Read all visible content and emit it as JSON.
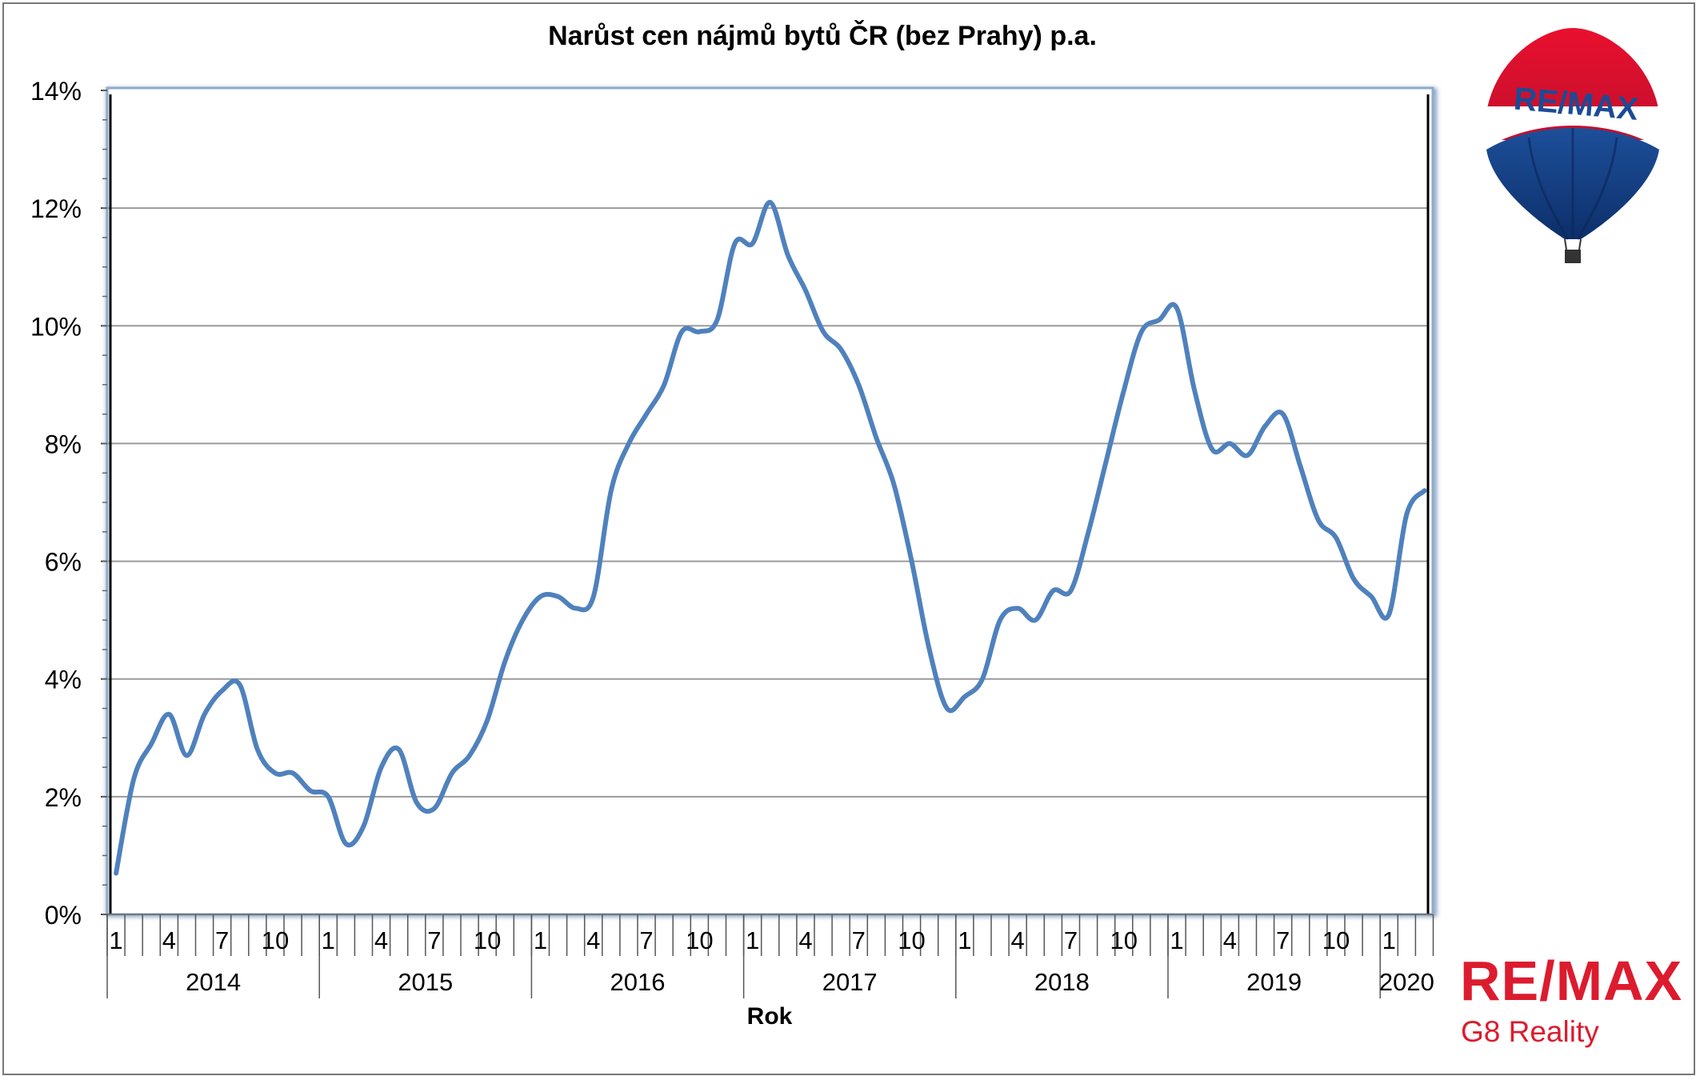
{
  "chart_data": {
    "type": "line",
    "title": "Narůst cen nájmů bytů ČR (bez Prahy) p.a.",
    "xlabel": "Rok",
    "ylabel": "",
    "ylim": [
      0,
      14
    ],
    "yticks": [
      "0%",
      "2%",
      "4%",
      "6%",
      "8%",
      "10%",
      "12%",
      "14%"
    ],
    "grid": true,
    "legend": "none",
    "years": [
      "2014",
      "2015",
      "2016",
      "2017",
      "2018",
      "2019",
      "2020"
    ],
    "month_tick_labels": [
      "1",
      "4",
      "7",
      "10"
    ],
    "x": [
      "2014-01",
      "2014-02",
      "2014-03",
      "2014-04",
      "2014-05",
      "2014-06",
      "2014-07",
      "2014-08",
      "2014-09",
      "2014-10",
      "2014-11",
      "2014-12",
      "2015-01",
      "2015-02",
      "2015-03",
      "2015-04",
      "2015-05",
      "2015-06",
      "2015-07",
      "2015-08",
      "2015-09",
      "2015-10",
      "2015-11",
      "2015-12",
      "2016-01",
      "2016-02",
      "2016-03",
      "2016-04",
      "2016-05",
      "2016-06",
      "2016-07",
      "2016-08",
      "2016-09",
      "2016-10",
      "2016-11",
      "2016-12",
      "2017-01",
      "2017-02",
      "2017-03",
      "2017-04",
      "2017-05",
      "2017-06",
      "2017-07",
      "2017-08",
      "2017-09",
      "2017-10",
      "2017-11",
      "2017-12",
      "2018-01",
      "2018-02",
      "2018-03",
      "2018-04",
      "2018-05",
      "2018-06",
      "2018-07",
      "2018-08",
      "2018-09",
      "2018-10",
      "2018-11",
      "2018-12",
      "2019-01",
      "2019-02",
      "2019-03",
      "2019-04",
      "2019-05",
      "2019-06",
      "2019-07",
      "2019-08",
      "2019-09",
      "2019-10",
      "2019-11",
      "2019-12",
      "2020-01",
      "2020-02",
      "2020-03"
    ],
    "series": [
      {
        "color": "#4f81bd",
        "values": [
          0.7,
          2.3,
          2.9,
          3.4,
          2.7,
          3.4,
          3.8,
          3.9,
          2.8,
          2.4,
          2.4,
          2.1,
          2.0,
          1.2,
          1.5,
          2.5,
          2.8,
          1.9,
          1.8,
          2.4,
          2.7,
          3.3,
          4.3,
          5.0,
          5.4,
          5.4,
          5.2,
          5.4,
          7.2,
          8.0,
          8.5,
          9.0,
          9.9,
          9.9,
          10.1,
          11.4,
          11.4,
          12.1,
          11.2,
          10.6,
          9.9,
          9.6,
          9.0,
          8.1,
          7.3,
          6.0,
          4.5,
          3.5,
          3.7,
          4.0,
          5.0,
          5.2,
          5.0,
          5.5,
          5.5,
          6.5,
          7.7,
          8.9,
          9.9,
          10.1,
          10.3,
          8.9,
          7.9,
          8.0,
          7.8,
          8.3,
          8.5,
          7.6,
          6.7,
          6.4,
          5.7,
          5.4,
          5.1,
          6.8,
          7.2
        ]
      }
    ]
  },
  "logos": {
    "balloon_text": "RE/MAX",
    "brand": "RE/MAX",
    "subtitle": "G8 Reality",
    "brand_red": "#dc1c2e",
    "brand_blue": "#003da5"
  }
}
